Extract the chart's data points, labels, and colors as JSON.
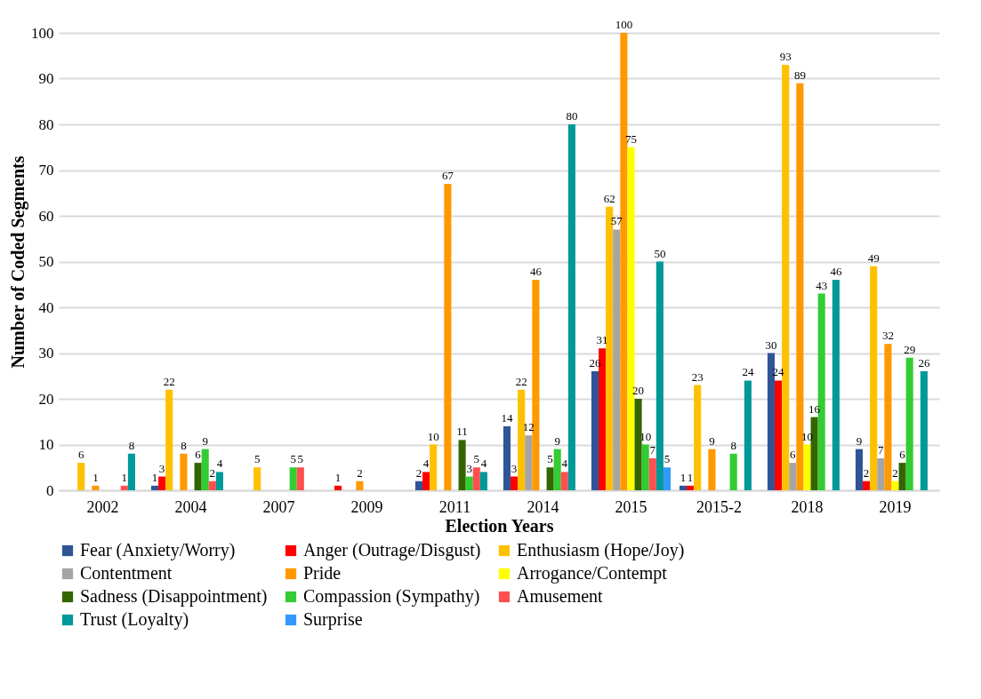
{
  "chart_data": {
    "type": "bar",
    "xlabel": "Election Years",
    "ylabel": "Number of Coded Segments",
    "categories": [
      "2002",
      "2004",
      "2007",
      "2009",
      "2011",
      "2014",
      "2015",
      "2015-2",
      "2018",
      "2019"
    ],
    "series": [
      {
        "name": "Fear (Anxiety/Worry)",
        "color": "#2f5597",
        "values": [
          0,
          1,
          0,
          0,
          2,
          14,
          26,
          1,
          30,
          9
        ],
        "value_labels": [
          null,
          "1",
          null,
          null,
          "2",
          "14",
          "26",
          "1",
          "30",
          "9"
        ]
      },
      {
        "name": "Anger (Outrage/Disgust)",
        "color": "#ff0000",
        "values": [
          0,
          3,
          0,
          1,
          4,
          3,
          31,
          1,
          24,
          2
        ],
        "value_labels": [
          null,
          "3",
          null,
          "1",
          "4",
          "3",
          "31",
          "1",
          "24",
          "2"
        ]
      },
      {
        "name": "Enthusiasm (Hope/Joy)",
        "color": "#ffc000",
        "values": [
          6,
          22,
          5,
          0,
          10,
          22,
          62,
          23,
          93,
          49
        ],
        "value_labels": [
          "6",
          "22",
          "5",
          null,
          "10",
          "22",
          "62",
          "23",
          "93",
          "49"
        ]
      },
      {
        "name": "Contentment",
        "color": "#a5a5a5",
        "values": [
          0,
          0,
          0,
          0,
          0,
          12,
          57,
          0,
          6,
          7
        ],
        "value_labels": [
          null,
          null,
          null,
          null,
          null,
          "12",
          "57",
          null,
          "6",
          "7"
        ]
      },
      {
        "name": "Pride",
        "color": "#ff9900",
        "values": [
          1,
          8,
          0,
          2,
          67,
          46,
          100,
          9,
          89,
          32
        ],
        "value_labels": [
          "1",
          "8",
          null,
          "2",
          "67",
          "46",
          "100",
          "9",
          "89",
          "32"
        ]
      },
      {
        "name": "Arrogance/Contempt",
        "color": "#ffff00",
        "values": [
          0,
          0,
          0,
          0,
          0,
          0,
          75,
          0,
          10,
          2
        ],
        "value_labels": [
          null,
          null,
          null,
          null,
          null,
          null,
          "75",
          null,
          "10",
          "2"
        ]
      },
      {
        "name": "Sadness (Disappointment)",
        "color": "#336600",
        "values": [
          0,
          6,
          0,
          0,
          11,
          5,
          20,
          0,
          16,
          6
        ],
        "value_labels": [
          null,
          "6",
          null,
          null,
          "11",
          "5",
          "20",
          null,
          "16",
          "6"
        ]
      },
      {
        "name": "Compassion (Sympathy)",
        "color": "#33cc33",
        "values": [
          0,
          9,
          5,
          0,
          3,
          9,
          10,
          8,
          43,
          29
        ],
        "value_labels": [
          null,
          "9",
          "5",
          null,
          "3",
          "9",
          "10",
          "8",
          "43",
          "29"
        ]
      },
      {
        "name": "Amusement",
        "color": "#ff5050",
        "values": [
          1,
          2,
          5,
          0,
          5,
          4,
          7,
          0,
          0,
          0
        ],
        "value_labels": [
          "1",
          "2",
          "5",
          null,
          "5",
          "4",
          "7",
          null,
          null,
          null
        ]
      },
      {
        "name": "Trust (Loyalty)",
        "color": "#009999",
        "values": [
          8,
          4,
          0,
          0,
          4,
          80,
          50,
          24,
          46,
          26
        ],
        "value_labels": [
          "8",
          "4",
          null,
          null,
          "4",
          "80",
          "50",
          "24",
          "46",
          "26"
        ]
      },
      {
        "name": "Surprise",
        "color": "#3399ff",
        "values": [
          0,
          0,
          0,
          0,
          0,
          0,
          5,
          0,
          0,
          0
        ],
        "value_labels": [
          null,
          null,
          null,
          null,
          null,
          null,
          "5",
          null,
          null,
          null
        ]
      }
    ],
    "ylim": [
      0,
      100
    ],
    "yticks": [
      0,
      10,
      20,
      30,
      40,
      50,
      60,
      70,
      80,
      90,
      100
    ],
    "grid": "y",
    "legend": "bottom"
  }
}
